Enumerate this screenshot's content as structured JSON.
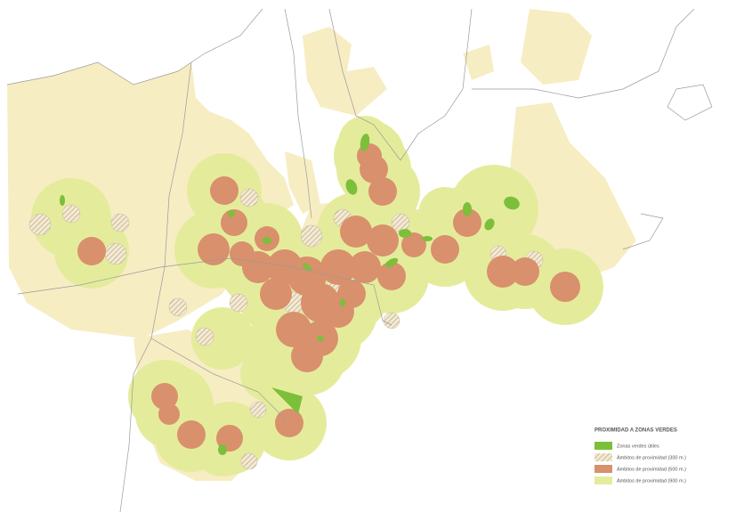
{
  "legend": {
    "title": "PROXIMIDAD A ZONAS VERDES",
    "items": [
      {
        "label": "Zonas verdes útiles"
      },
      {
        "label": "Ámbitos de proximidad (300 m.)"
      },
      {
        "label": "Ámbitos de proximidad (500 m.)"
      },
      {
        "label": "Ámbitos de proximidad (900 m.)"
      }
    ]
  }
}
